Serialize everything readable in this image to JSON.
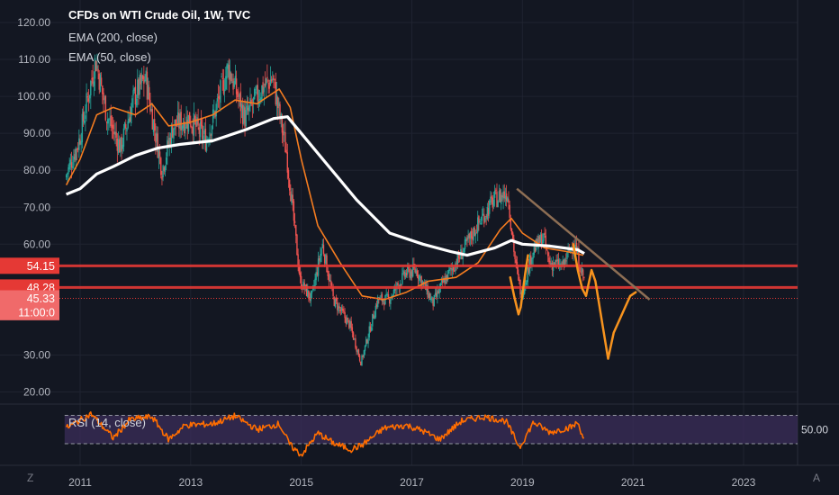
{
  "legend": {
    "title": "CFDs on WTI Crude Oil, 1W, TVC",
    "ema200": "EMA (200, close)",
    "ema50": "EMA (50, close)",
    "rsi": "RSI (14, close)"
  },
  "corners": {
    "bottom_left": "Z",
    "bottom_right": "A"
  },
  "colors": {
    "background": "#131722",
    "up": "#26a69a",
    "down": "#ef5350",
    "ema200": "#ffffff",
    "ema50": "#f57c20",
    "resistance": "#e53935",
    "trendline": "#8d6e54",
    "projection": "#f7931e",
    "rsi_line": "#ff6d00",
    "rsi_band": "#3b2d5a"
  },
  "chart_data": {
    "type": "candlestick",
    "x_ticks": [
      "2011",
      "2013",
      "2015",
      "2017",
      "2019",
      "2021",
      "2023"
    ],
    "y_ticks": [
      "120.00",
      "110.00",
      "100.00",
      "90.00",
      "80.00",
      "70.00",
      "60.00",
      "30.00",
      "20.00"
    ],
    "price_labels": [
      {
        "text": "54.15",
        "value": 54.15
      },
      {
        "text": "48.28",
        "value": 48.28
      },
      {
        "text": "45.33",
        "value": 45.33
      },
      {
        "text": "11:00:0",
        "value": 41.6
      }
    ],
    "horizontal_levels": [
      54.15,
      48.28
    ],
    "dotted_level": 45.33,
    "price_path": [
      [
        2010.75,
        78
      ],
      [
        2011.0,
        88
      ],
      [
        2011.3,
        110
      ],
      [
        2011.5,
        95
      ],
      [
        2011.75,
        86
      ],
      [
        2012.0,
        100
      ],
      [
        2012.2,
        105
      ],
      [
        2012.5,
        80
      ],
      [
        2012.7,
        92
      ],
      [
        2013.0,
        94
      ],
      [
        2013.3,
        88
      ],
      [
        2013.7,
        108
      ],
      [
        2014.0,
        94
      ],
      [
        2014.3,
        102
      ],
      [
        2014.5,
        105
      ],
      [
        2014.75,
        85
      ],
      [
        2015.0,
        50
      ],
      [
        2015.2,
        45
      ],
      [
        2015.4,
        60
      ],
      [
        2015.6,
        45
      ],
      [
        2015.9,
        38
      ],
      [
        2016.1,
        28
      ],
      [
        2016.4,
        45
      ],
      [
        2016.6,
        45
      ],
      [
        2016.9,
        52
      ],
      [
        2017.1,
        53
      ],
      [
        2017.4,
        44
      ],
      [
        2017.6,
        50
      ],
      [
        2017.9,
        57
      ],
      [
        2018.2,
        65
      ],
      [
        2018.5,
        72
      ],
      [
        2018.75,
        74
      ],
      [
        2018.9,
        54
      ],
      [
        2019.0,
        46
      ],
      [
        2019.2,
        58
      ],
      [
        2019.4,
        62
      ],
      [
        2019.5,
        55
      ],
      [
        2019.75,
        54
      ],
      [
        2019.95,
        61
      ],
      [
        2020.05,
        55
      ],
      [
        2020.12,
        51
      ]
    ],
    "ema200_path": [
      [
        2010.75,
        73.5
      ],
      [
        2011.0,
        75
      ],
      [
        2011.3,
        79
      ],
      [
        2011.6,
        81
      ],
      [
        2012.0,
        84
      ],
      [
        2012.4,
        86
      ],
      [
        2012.8,
        87
      ],
      [
        2013.4,
        88
      ],
      [
        2014.0,
        91
      ],
      [
        2014.5,
        94
      ],
      [
        2014.75,
        94.5
      ],
      [
        2015.0,
        90
      ],
      [
        2015.5,
        81
      ],
      [
        2016.0,
        72
      ],
      [
        2016.6,
        63
      ],
      [
        2017.2,
        60
      ],
      [
        2017.7,
        58
      ],
      [
        2018.0,
        57
      ],
      [
        2018.5,
        59
      ],
      [
        2018.8,
        61
      ],
      [
        2019.0,
        60
      ],
      [
        2019.5,
        59.5
      ],
      [
        2020.0,
        58.5
      ],
      [
        2020.12,
        57.5
      ]
    ],
    "ema50_path": [
      [
        2010.75,
        76
      ],
      [
        2011.0,
        83
      ],
      [
        2011.3,
        95
      ],
      [
        2011.6,
        97
      ],
      [
        2012.0,
        95
      ],
      [
        2012.3,
        98
      ],
      [
        2012.6,
        92
      ],
      [
        2013.0,
        93
      ],
      [
        2013.4,
        95
      ],
      [
        2013.8,
        99
      ],
      [
        2014.2,
        98
      ],
      [
        2014.6,
        102
      ],
      [
        2014.8,
        97
      ],
      [
        2015.0,
        83
      ],
      [
        2015.3,
        65
      ],
      [
        2015.7,
        55
      ],
      [
        2016.1,
        46
      ],
      [
        2016.5,
        45
      ],
      [
        2016.9,
        47
      ],
      [
        2017.3,
        50
      ],
      [
        2017.8,
        51
      ],
      [
        2018.2,
        55
      ],
      [
        2018.6,
        64
      ],
      [
        2018.8,
        67
      ],
      [
        2019.0,
        63
      ],
      [
        2019.4,
        59
      ],
      [
        2019.8,
        58
      ],
      [
        2020.1,
        57
      ]
    ],
    "trendline": [
      [
        2018.9,
        75
      ],
      [
        2021.3,
        45
      ]
    ],
    "projection_stroke_1": [
      [
        2018.78,
        51
      ],
      [
        2018.85,
        46
      ],
      [
        2018.93,
        41
      ],
      [
        2018.97,
        43
      ],
      [
        2019.05,
        52
      ],
      [
        2019.1,
        57
      ]
    ],
    "projection_stroke_2": [
      [
        2019.92,
        60
      ],
      [
        2020.0,
        53
      ],
      [
        2020.08,
        48
      ],
      [
        2020.15,
        46
      ],
      [
        2020.25,
        53
      ],
      [
        2020.32,
        50
      ],
      [
        2020.45,
        38
      ],
      [
        2020.55,
        29
      ],
      [
        2020.65,
        36
      ],
      [
        2020.8,
        41
      ],
      [
        2020.95,
        46
      ],
      [
        2021.05,
        47
      ]
    ],
    "rsi": {
      "label": "RSI (14, close)",
      "level_text": "50.00",
      "upper": 70,
      "lower": 30,
      "path": [
        [
          2010.75,
          52
        ],
        [
          2011.2,
          72
        ],
        [
          2011.6,
          38
        ],
        [
          2011.9,
          64
        ],
        [
          2012.3,
          68
        ],
        [
          2012.6,
          36
        ],
        [
          2012.9,
          56
        ],
        [
          2013.4,
          58
        ],
        [
          2013.8,
          69
        ],
        [
          2014.2,
          50
        ],
        [
          2014.6,
          58
        ],
        [
          2014.8,
          28
        ],
        [
          2015.0,
          14
        ],
        [
          2015.3,
          45
        ],
        [
          2015.6,
          30
        ],
        [
          2015.9,
          22
        ],
        [
          2016.1,
          28
        ],
        [
          2016.5,
          52
        ],
        [
          2016.9,
          56
        ],
        [
          2017.2,
          48
        ],
        [
          2017.5,
          36
        ],
        [
          2017.9,
          62
        ],
        [
          2018.3,
          68
        ],
        [
          2018.7,
          62
        ],
        [
          2018.95,
          25
        ],
        [
          2019.2,
          60
        ],
        [
          2019.5,
          46
        ],
        [
          2019.9,
          54
        ],
        [
          2020.0,
          60
        ],
        [
          2020.12,
          35
        ]
      ]
    }
  }
}
